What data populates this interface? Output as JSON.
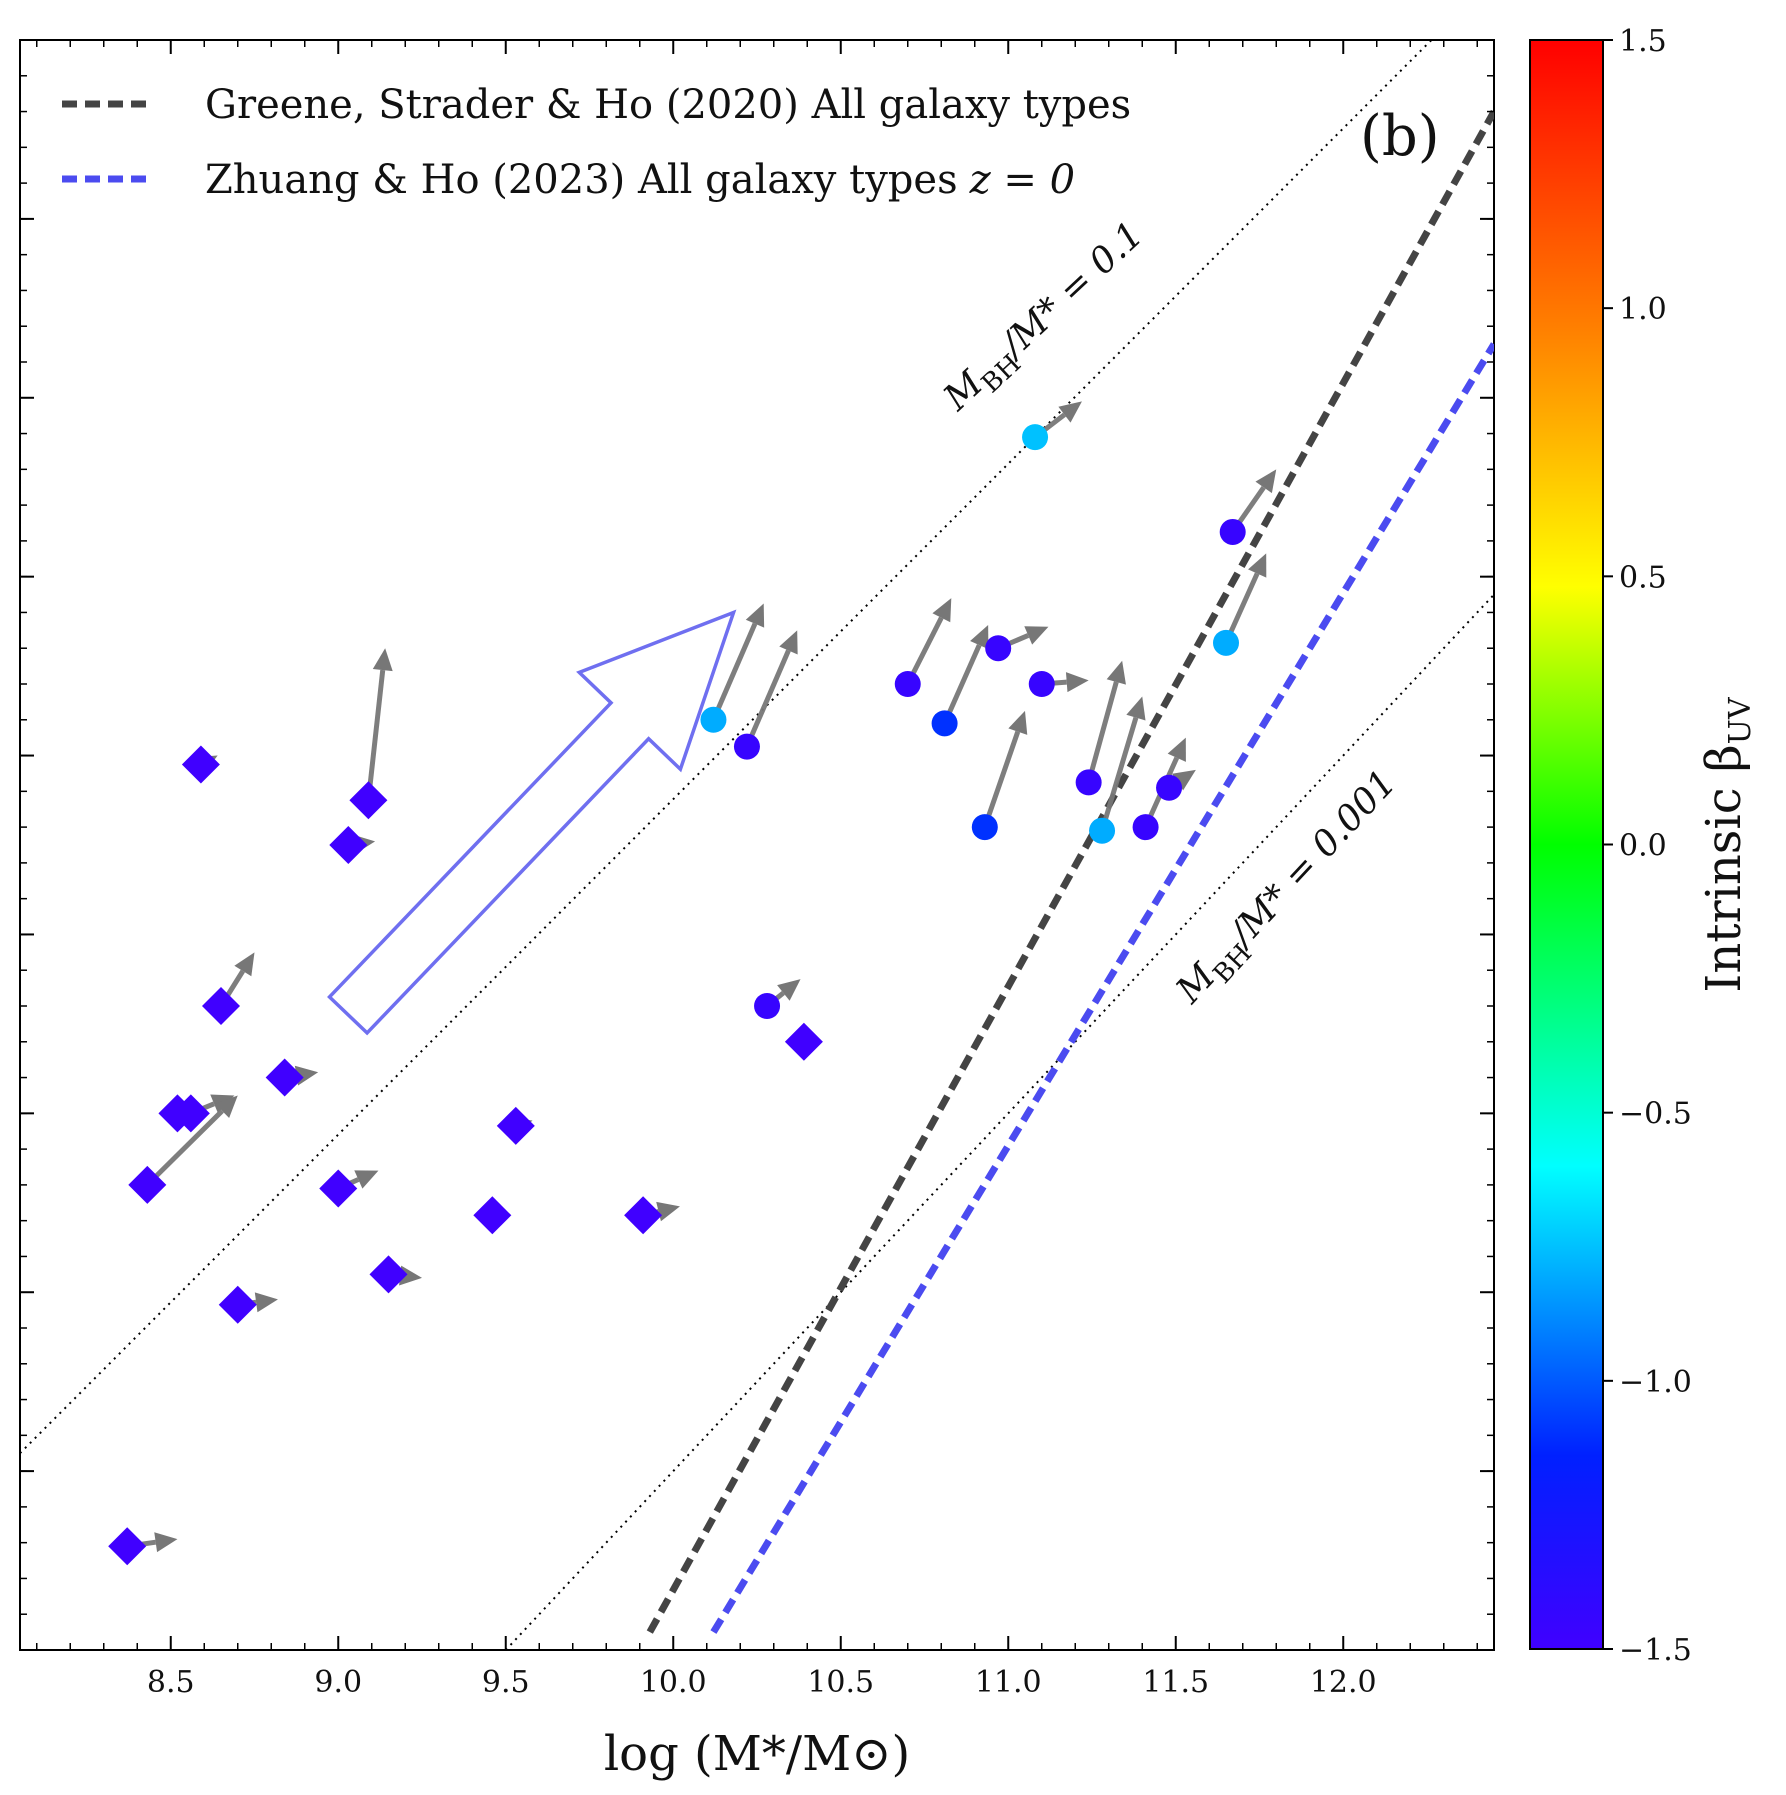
{
  "chart_data": {
    "type": "scatter",
    "panel_label": "(b)",
    "xlabel": "log (M*/M⊙)",
    "ylabel": "",
    "xlim": [
      8.05,
      12.45
    ],
    "ylim": [
      0,
      9
    ],
    "x_ticks": [
      "8.5",
      "9.0",
      "9.5",
      "10.0",
      "10.5",
      "11.0",
      "11.5",
      "12.0"
    ],
    "legend": [
      {
        "label": "Greene, Strader & Ho (2020)  All galaxy types",
        "color": "#444444",
        "style": "dashed"
      },
      {
        "label": "Zhuang & Ho (2023)  All galaxy types",
        "suffix": "z = 0",
        "color": "#4b4bf0",
        "style": "dashed"
      }
    ],
    "relations": [
      {
        "name": "Greene, Strader & Ho (2020)",
        "x": [
          9.93,
          12.45
        ],
        "y": [
          0.1,
          8.6
        ]
      },
      {
        "name": "Zhuang & Ho (2023) z = 0",
        "x": [
          10.12,
          12.45
        ],
        "y": [
          0.1,
          7.3
        ]
      }
    ],
    "ratio_lines": [
      {
        "label": "M_BH/M* = 0.1",
        "text_main": "M",
        "text_sub": "BH",
        "text_rest": "/M* = 0.1",
        "x": [
          8.05,
          12.45
        ],
        "y": [
          1.1,
          9.35
        ]
      },
      {
        "label": "M_BH/M* = 0.001",
        "text_main": "M",
        "text_sub": "BH",
        "text_rest": "/M* = 0.001",
        "x": [
          9.5,
          12.45
        ],
        "y": [
          0.0,
          5.9
        ]
      }
    ],
    "big_arrow": {
      "from": [
        9.03,
        3.55
      ],
      "to": [
        10.18,
        5.8
      ],
      "color": "#6f6ff0"
    },
    "colorbar": {
      "label": "Intrinsic β",
      "label_sub": "UV",
      "range": [
        -1.5,
        1.5
      ],
      "ticks": [
        "1.5",
        "1.0",
        "0.5",
        "0.0",
        "−0.5",
        "−1.0",
        "−1.5"
      ],
      "tick_values": [
        1.5,
        1.0,
        0.5,
        0.0,
        -0.5,
        -1.0,
        -1.5
      ]
    },
    "circles": [
      {
        "x": 11.08,
        "y": 6.78,
        "dx": 0.14,
        "dy": 0.2,
        "beta": -0.75
      },
      {
        "x": 11.67,
        "y": 6.25,
        "dx": 0.13,
        "dy": 0.35,
        "beta": -1.45
      },
      {
        "x": 11.65,
        "y": 5.63,
        "dx": 0.12,
        "dy": 0.5,
        "beta": -0.8
      },
      {
        "x": 10.97,
        "y": 5.6,
        "dx": 0.15,
        "dy": 0.12,
        "beta": -1.45
      },
      {
        "x": 10.7,
        "y": 5.4,
        "dx": 0.13,
        "dy": 0.48,
        "beta": -1.45
      },
      {
        "x": 11.1,
        "y": 5.4,
        "dx": 0.14,
        "dy": 0.02,
        "beta": -1.45
      },
      {
        "x": 10.12,
        "y": 5.2,
        "dx": 0.15,
        "dy": 0.65,
        "beta": -0.8
      },
      {
        "x": 10.81,
        "y": 5.18,
        "dx": 0.13,
        "dy": 0.55,
        "beta": -1.1
      },
      {
        "x": 10.22,
        "y": 5.05,
        "dx": 0.15,
        "dy": 0.65,
        "beta": -1.45
      },
      {
        "x": 11.24,
        "y": 4.85,
        "dx": 0.1,
        "dy": 0.68,
        "beta": -1.45
      },
      {
        "x": 11.48,
        "y": 4.82,
        "dx": 0.08,
        "dy": 0.1,
        "beta": -1.45
      },
      {
        "x": 10.93,
        "y": 4.6,
        "dx": 0.12,
        "dy": 0.65,
        "beta": -1.1
      },
      {
        "x": 11.41,
        "y": 4.6,
        "dx": 0.12,
        "dy": 0.5,
        "beta": -1.45
      },
      {
        "x": 11.28,
        "y": 4.58,
        "dx": 0.12,
        "dy": 0.75,
        "beta": -0.8
      },
      {
        "x": 10.28,
        "y": 3.6,
        "dx": 0.1,
        "dy": 0.15,
        "beta": -1.45
      }
    ],
    "diamonds": [
      {
        "x": 8.59,
        "y": 4.95,
        "dx": 0.05,
        "dy": 0.05,
        "beta": -1.5
      },
      {
        "x": 9.09,
        "y": 4.75,
        "dx": 0.05,
        "dy": 0.85,
        "beta": -1.5
      },
      {
        "x": 9.03,
        "y": 4.5,
        "dx": 0.08,
        "dy": 0.02,
        "beta": -1.5
      },
      {
        "x": 8.65,
        "y": 3.6,
        "dx": 0.1,
        "dy": 0.3,
        "beta": -1.5
      },
      {
        "x": 10.39,
        "y": 3.4,
        "dx": 0.0,
        "dy": 0.0,
        "beta": -1.5
      },
      {
        "x": 8.84,
        "y": 3.2,
        "dx": 0.1,
        "dy": 0.03,
        "beta": -1.5
      },
      {
        "x": 8.52,
        "y": 3.0,
        "dx": 0.08,
        "dy": 0.03,
        "beta": -1.5
      },
      {
        "x": 8.56,
        "y": 3.0,
        "dx": 0.13,
        "dy": 0.1,
        "beta": -1.5
      },
      {
        "x": 9.53,
        "y": 2.93,
        "dx": 0.05,
        "dy": 0.03,
        "beta": -1.5
      },
      {
        "x": 8.43,
        "y": 2.6,
        "dx": 0.27,
        "dy": 0.5,
        "beta": -1.5
      },
      {
        "x": 9.0,
        "y": 2.58,
        "dx": 0.12,
        "dy": 0.1,
        "beta": -1.5
      },
      {
        "x": 9.46,
        "y": 2.43,
        "dx": 0.0,
        "dy": 0.0,
        "beta": -1.5
      },
      {
        "x": 9.91,
        "y": 2.43,
        "dx": 0.11,
        "dy": 0.05,
        "beta": -1.5
      },
      {
        "x": 9.15,
        "y": 2.1,
        "dx": 0.1,
        "dy": -0.02,
        "beta": -1.5
      },
      {
        "x": 8.7,
        "y": 1.93,
        "dx": 0.12,
        "dy": 0.03,
        "beta": -1.5
      },
      {
        "x": 8.37,
        "y": 0.58,
        "dx": 0.15,
        "dy": 0.04,
        "beta": -1.5
      }
    ]
  }
}
